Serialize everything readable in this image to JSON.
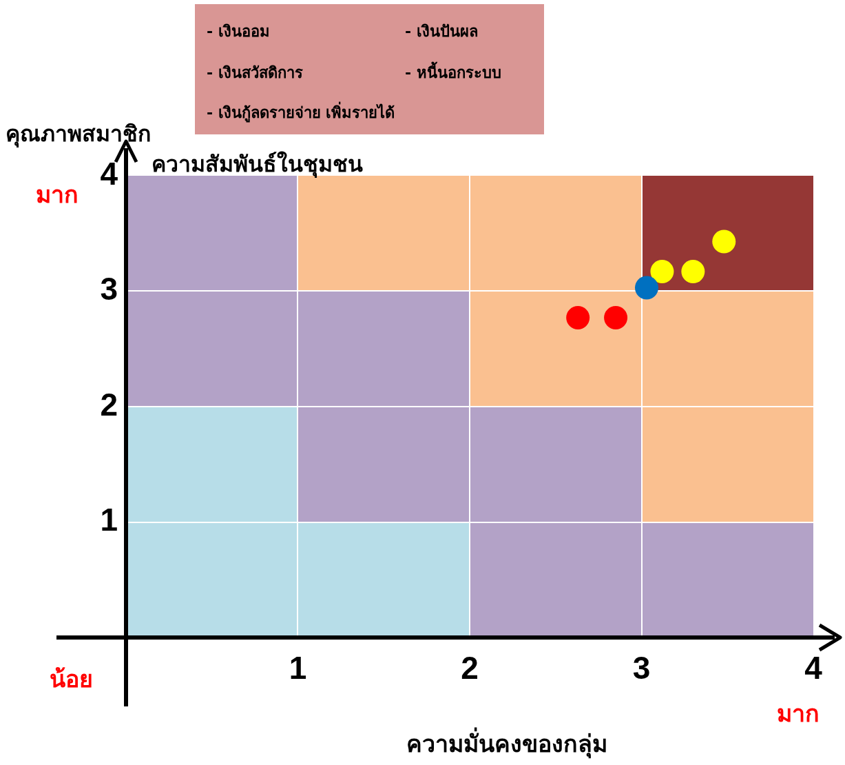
{
  "chart_data": {
    "type": "scatter",
    "xlabel": "ความมั่นคงของกลุ่ม",
    "ylabel": "คุณภาพสมาชิก",
    "xlim": [
      0,
      4
    ],
    "ylim": [
      0,
      4
    ],
    "xticks": [
      1,
      2,
      3,
      4
    ],
    "yticks": [
      1,
      2,
      3,
      4
    ],
    "grid": false,
    "legend": false,
    "marker": "circle",
    "series": [
      {
        "color": "#ff0000",
        "x": [
          2.63,
          2.85
        ],
        "values": [
          2.77,
          2.77
        ]
      },
      {
        "color": "#0070c0",
        "x": [
          3.03
        ],
        "values": [
          3.03
        ]
      },
      {
        "color": "#ffff00",
        "x": [
          3.12,
          3.3,
          3.48
        ],
        "values": [
          3.17,
          3.17,
          3.43
        ]
      }
    ],
    "annotations": [
      "ความสัมพันธ์ในชุมชน",
      "มาก",
      "น้อย",
      "มาก",
      "-  เงินออม",
      "- เงินปันผล",
      "-  เงินสวัสดิการ",
      "- หนี้นอกระบบ",
      "-  เงินกู้ลดรายจ่าย เพิ่มรายได้"
    ]
  }
}
